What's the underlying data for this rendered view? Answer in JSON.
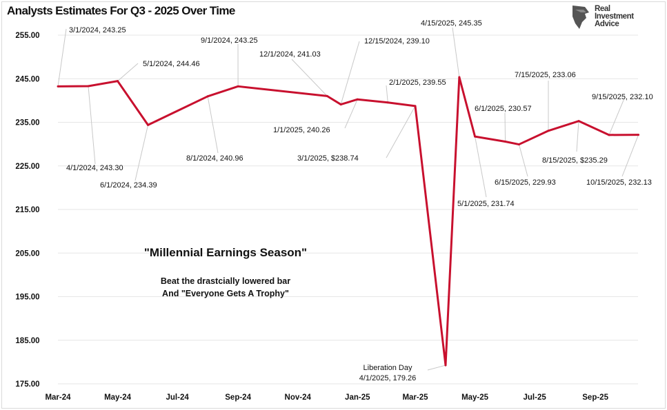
{
  "chart_data": {
    "type": "line",
    "title": "Analysts Estimates For Q3 - 2025 Over Time",
    "xlabel": "",
    "ylabel": "",
    "ylim": [
      175,
      255
    ],
    "y_ticks": [
      "175.00",
      "185.00",
      "195.00",
      "205.00",
      "215.00",
      "225.00",
      "235.00",
      "245.00",
      "255.00"
    ],
    "x_ticks": [
      {
        "label": "Mar-24",
        "date": "2024-03-01"
      },
      {
        "label": "May-24",
        "date": "2024-05-01"
      },
      {
        "label": "Jul-24",
        "date": "2024-07-01"
      },
      {
        "label": "Sep-24",
        "date": "2024-09-01"
      },
      {
        "label": "Nov-24",
        "date": "2024-11-01"
      },
      {
        "label": "Jan-25",
        "date": "2025-01-01"
      },
      {
        "label": "Mar-25",
        "date": "2025-03-01"
      },
      {
        "label": "May-25",
        "date": "2025-05-01"
      },
      {
        "label": "Jul-25",
        "date": "2025-07-01"
      },
      {
        "label": "Sep-25",
        "date": "2025-09-01"
      }
    ],
    "grid": true,
    "line_color": "#c8102e",
    "points": [
      {
        "date": "2024-03-01",
        "value": 243.25,
        "label": "3/1/2024,  243.25"
      },
      {
        "date": "2024-04-01",
        "value": 243.3,
        "label": "4/1/2024,  243.30"
      },
      {
        "date": "2024-05-01",
        "value": 244.46,
        "label": "5/1/2024,  244.46"
      },
      {
        "date": "2024-06-01",
        "value": 234.39,
        "label": "6/1/2024,  234.39"
      },
      {
        "date": "2024-08-01",
        "value": 240.96,
        "label": "8/1/2024,  240.96"
      },
      {
        "date": "2024-09-01",
        "value": 243.25,
        "label": "9/1/2024,  243.25"
      },
      {
        "date": "2024-12-01",
        "value": 241.03,
        "label": "12/1/2024,  241.03"
      },
      {
        "date": "2024-12-15",
        "value": 239.1,
        "label": "12/15/2024,  239.10"
      },
      {
        "date": "2025-01-01",
        "value": 240.26,
        "label": "1/1/2025,  240.26"
      },
      {
        "date": "2025-02-01",
        "value": 239.55,
        "label": "2/1/2025,  239.55"
      },
      {
        "date": "2025-03-01",
        "value": 238.74,
        "label": "3/1/2025, $238.74"
      },
      {
        "date": "2025-04-01",
        "value": 179.26,
        "label": "4/1/2025,  179.26",
        "label_prefix": "Liberation Day"
      },
      {
        "date": "2025-04-15",
        "value": 245.35,
        "label": "4/15/2025,  245.35"
      },
      {
        "date": "2025-05-01",
        "value": 231.74,
        "label": "5/1/2025,  231.74"
      },
      {
        "date": "2025-06-01",
        "value": 230.57,
        "label": "6/1/2025,  230.57"
      },
      {
        "date": "2025-06-15",
        "value": 229.93,
        "label": "6/15/2025,  229.93"
      },
      {
        "date": "2025-07-15",
        "value": 233.06,
        "label": "7/15/2025,  233.06"
      },
      {
        "date": "2025-08-15",
        "value": 235.29,
        "label": "8/15/2025, $235.29"
      },
      {
        "date": "2025-09-15",
        "value": 232.1,
        "label": "9/15/2025,  232.10"
      },
      {
        "date": "2025-10-15",
        "value": 232.13,
        "label": "10/15/2025,  232.13"
      }
    ],
    "annotations": {
      "headline": "\"Millennial Earnings Season\"",
      "line1": "Beat the drastcially lowered bar",
      "line2": "And \"Everyone Gets A Trophy\""
    }
  },
  "logo": {
    "line1": "Real",
    "line2": "Investment",
    "line3": "Advice"
  }
}
